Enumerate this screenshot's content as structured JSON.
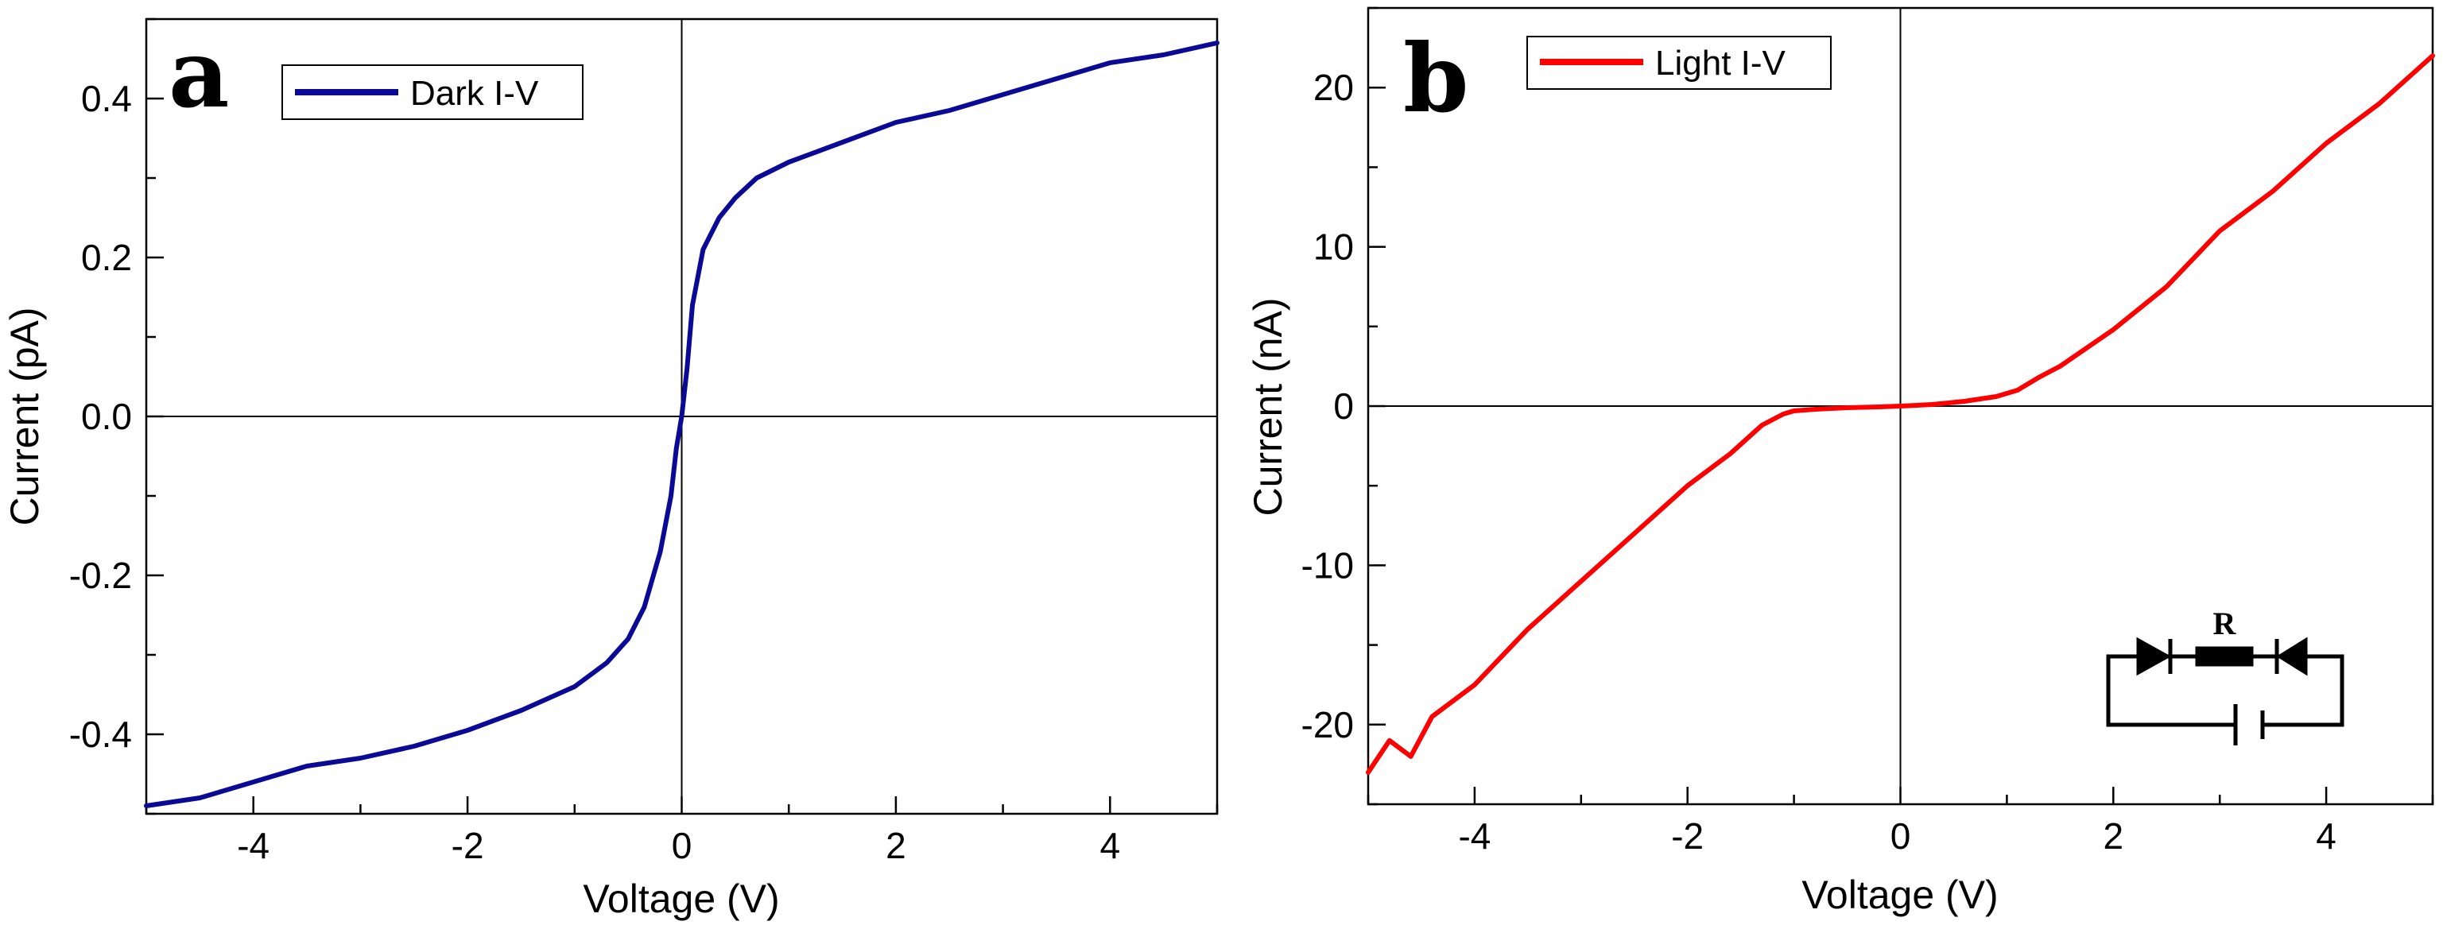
{
  "chart_data": [
    {
      "type": "line",
      "panel": "a",
      "xlabel": "Voltage (V)",
      "ylabel": "Current (pA)",
      "xlim": [
        -5,
        5
      ],
      "ylim": [
        -0.5,
        0.5
      ],
      "xticks": [
        -4,
        -2,
        0,
        2,
        4
      ],
      "xtick_labels": [
        "-4",
        "-2",
        "0",
        "2",
        "4"
      ],
      "yticks": [
        -0.4,
        -0.2,
        0.0,
        0.2,
        0.4
      ],
      "ytick_labels": [
        "-0.4",
        "-0.2",
        "0.0",
        "0.2",
        "0.4"
      ],
      "legend": "top-left",
      "zero_lines": true,
      "series": [
        {
          "name": "Dark I-V",
          "color": "#0a0a96",
          "x": [
            -5,
            -4.5,
            -4,
            -3.5,
            -3,
            -2.5,
            -2,
            -1.5,
            -1,
            -0.7,
            -0.5,
            -0.35,
            -0.2,
            -0.1,
            -0.05,
            0,
            0.05,
            0.1,
            0.2,
            0.35,
            0.5,
            0.7,
            1,
            1.5,
            2,
            2.5,
            3,
            3.5,
            4,
            4.5,
            5
          ],
          "y": [
            -0.49,
            -0.48,
            -0.46,
            -0.44,
            -0.43,
            -0.415,
            -0.395,
            -0.37,
            -0.34,
            -0.31,
            -0.28,
            -0.24,
            -0.17,
            -0.1,
            -0.04,
            0.0,
            0.06,
            0.14,
            0.21,
            0.25,
            0.275,
            0.3,
            0.32,
            0.345,
            0.37,
            0.385,
            0.405,
            0.425,
            0.445,
            0.455,
            0.47
          ]
        }
      ]
    },
    {
      "type": "line",
      "panel": "b",
      "xlabel": "Voltage (V)",
      "ylabel": "Current (nA)",
      "xlim": [
        -5,
        5
      ],
      "ylim": [
        -25,
        25
      ],
      "xticks": [
        -4,
        -2,
        0,
        2,
        4
      ],
      "xtick_labels": [
        "-4",
        "-2",
        "0",
        "2",
        "4"
      ],
      "yticks": [
        -20,
        -10,
        0,
        10,
        20
      ],
      "ytick_labels": [
        "-20",
        "-10",
        "0",
        "10",
        "20"
      ],
      "legend": "top-left",
      "zero_lines": true,
      "inset": {
        "type": "circuit",
        "label": "R"
      },
      "series": [
        {
          "name": "Light I-V",
          "color": "#ff0000",
          "x": [
            -5,
            -4.8,
            -4.6,
            -4.4,
            -4,
            -3.5,
            -3,
            -2.5,
            -2,
            -1.6,
            -1.3,
            -1.1,
            -1,
            -0.8,
            -0.5,
            -0.2,
            0,
            0.3,
            0.6,
            0.9,
            1.1,
            1.3,
            1.5,
            2,
            2.5,
            3,
            3.5,
            4,
            4.5,
            5
          ],
          "y": [
            -23,
            -21,
            -22,
            -19.5,
            -17.5,
            -14,
            -11,
            -8,
            -5,
            -3,
            -1.2,
            -0.5,
            -0.3,
            -0.2,
            -0.1,
            -0.05,
            0,
            0.1,
            0.3,
            0.6,
            1.0,
            1.8,
            2.5,
            4.8,
            7.5,
            11,
            13.5,
            16.5,
            19,
            22
          ]
        }
      ]
    }
  ]
}
